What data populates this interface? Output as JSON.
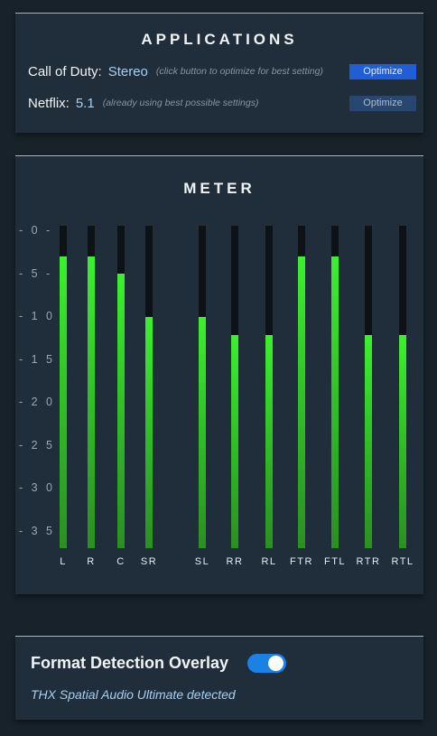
{
  "applications": {
    "title": "APPLICATIONS",
    "items": [
      {
        "name": "Call of Duty:",
        "format": "Stereo",
        "hint": "(click button to optimize for best setting)",
        "button": "Optimize",
        "button_state": "active"
      },
      {
        "name": "Netflix:",
        "format": "5.1",
        "hint": "(already using best possible settings)",
        "button": "Optimize",
        "button_state": "disabled"
      }
    ]
  },
  "meter": {
    "title": "METER",
    "scale": [
      "- 0 -",
      "- 5 -",
      "- 1 0 -",
      "- 1 5 -",
      "- 2 0 -",
      "- 2 5 -",
      "- 3 0 -",
      "- 3 5 -"
    ],
    "scale_db": [
      0,
      5,
      10,
      15,
      20,
      25,
      30,
      35
    ],
    "range_db": [
      0,
      37
    ],
    "channels": [
      {
        "label": "L",
        "level_db": 3.5
      },
      {
        "label": "R",
        "level_db": 3.5
      },
      {
        "label": "C",
        "level_db": 5.5
      },
      {
        "label": "SR",
        "level_db": 10.5
      },
      {
        "label": "SL",
        "level_db": 10.5
      },
      {
        "label": "RR",
        "level_db": 12.5
      },
      {
        "label": "RL",
        "level_db": 12.5
      },
      {
        "label": "FTR",
        "level_db": 3.5
      },
      {
        "label": "FTL",
        "level_db": 3.5
      },
      {
        "label": "RTR",
        "level_db": 12.5
      },
      {
        "label": "RTL",
        "level_db": 12.5
      }
    ],
    "colors": {
      "fill_top": "#3cf12e",
      "fill_bottom": "#2a8f22",
      "track": "#0d1216"
    }
  },
  "format_detection": {
    "title": "Format Detection Overlay",
    "enabled": true,
    "status": "THX Spatial Audio Ultimate detected"
  },
  "colors": {
    "accent": "#1b82e3",
    "button_active": "#1f5ed6",
    "button_disabled": "#274770",
    "panel": "#1f2e3a",
    "background": "#17222b"
  }
}
